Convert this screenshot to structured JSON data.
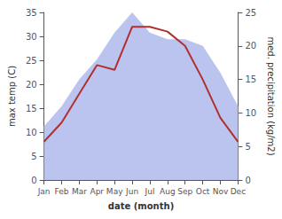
{
  "chart_data": {
    "type": "line",
    "xlabel": "date (month)",
    "ylabel": "max temp (C)",
    "y2label": "med. precipitation (kg/m2)",
    "categories": [
      "Jan",
      "Feb",
      "Mar",
      "Apr",
      "May",
      "Jun",
      "Jul",
      "Aug",
      "Sep",
      "Oct",
      "Nov",
      "Dec"
    ],
    "series": [
      {
        "type": "area",
        "axis": "y2",
        "color": "#bbc4ee",
        "values": [
          8,
          11,
          15,
          18,
          22,
          25,
          22,
          21,
          21,
          20,
          16,
          11
        ]
      },
      {
        "type": "line",
        "color": "#b03030",
        "values": [
          8,
          12,
          18,
          24,
          23,
          32,
          32,
          31,
          28,
          21,
          13,
          8
        ]
      }
    ],
    "ylim": [
      0,
      35
    ],
    "yticks": [
      0,
      5,
      10,
      15,
      20,
      25,
      30,
      35
    ],
    "y2lim": [
      0,
      25
    ],
    "y2ticks": [
      0,
      5,
      10,
      15,
      20,
      25
    ],
    "grid": false
  }
}
